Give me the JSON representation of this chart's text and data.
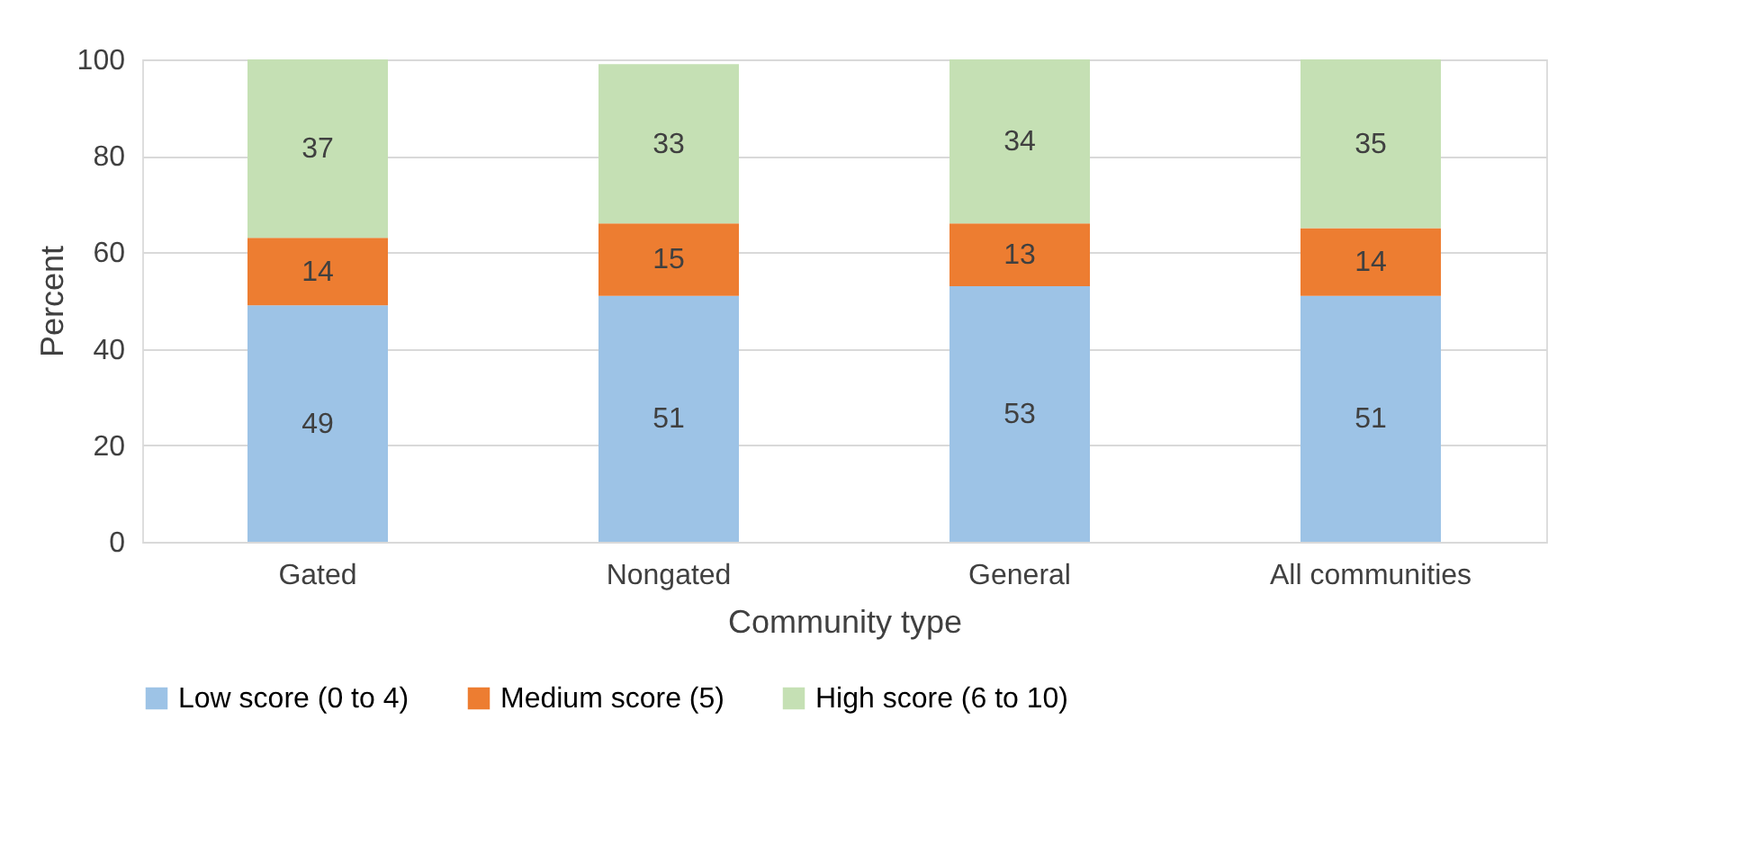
{
  "chart_data": {
    "type": "bar",
    "stacked": true,
    "xlabel": "Community type",
    "ylabel": "Percent",
    "categories": [
      "Gated",
      "Nongated",
      "General",
      "All communities"
    ],
    "series": [
      {
        "name": "Low score (0 to 4)",
        "color": "#9dc3e6",
        "values": [
          49,
          51,
          53,
          51
        ]
      },
      {
        "name": "Medium score (5)",
        "color": "#ed7d31",
        "values": [
          14,
          15,
          13,
          14
        ]
      },
      {
        "name": "High score (6 to 10)",
        "color": "#c5e0b4",
        "values": [
          37,
          33,
          34,
          35
        ]
      }
    ],
    "ylim": [
      0,
      100
    ],
    "yticks": [
      0,
      20,
      40,
      60,
      80,
      100
    ],
    "grid": "y",
    "legend": "bottom",
    "data_labels": true
  }
}
